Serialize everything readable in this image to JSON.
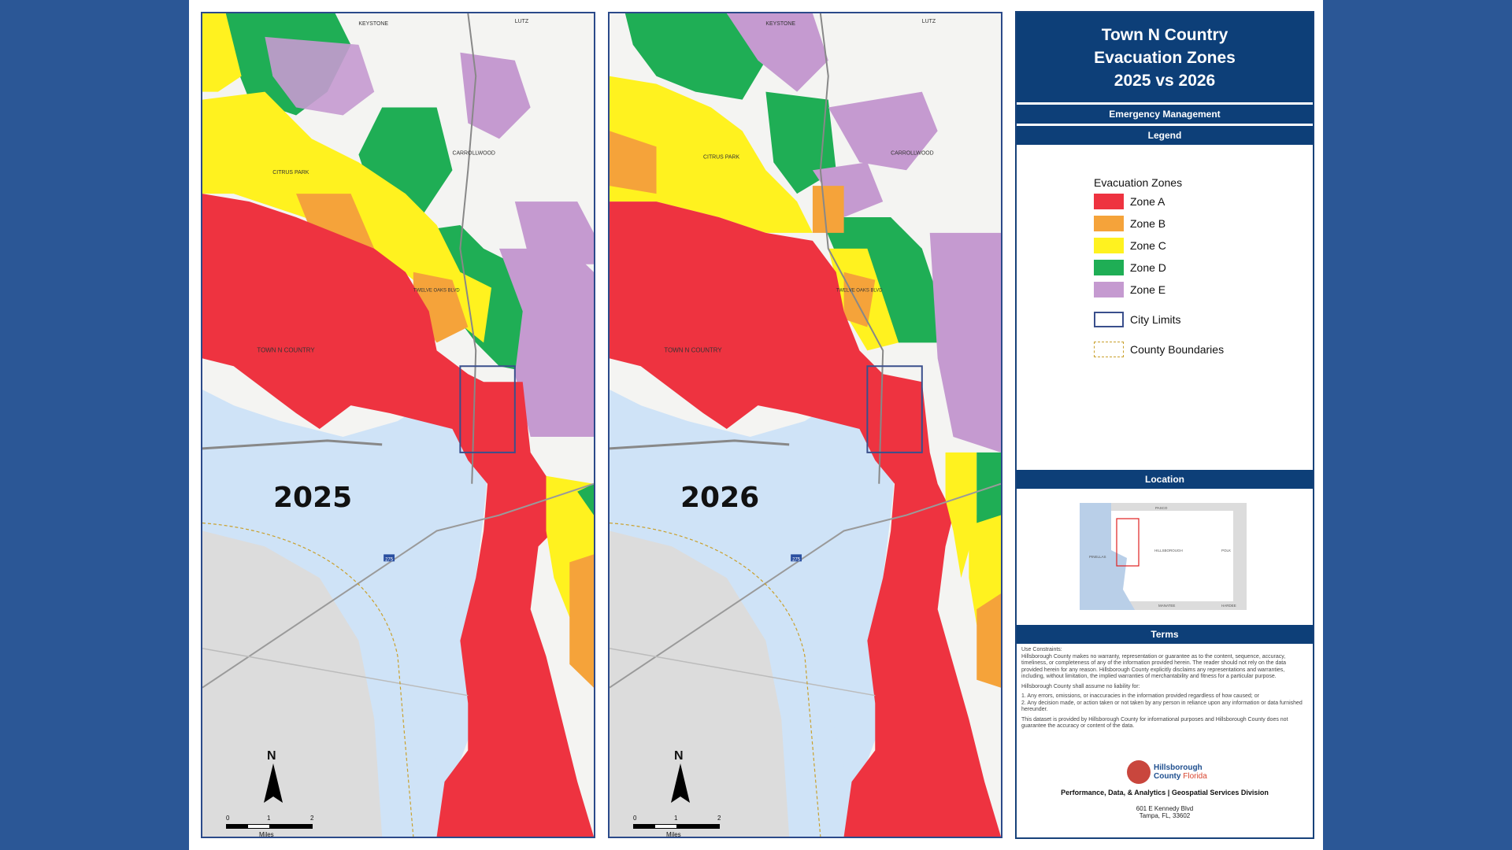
{
  "maps": [
    {
      "year": "2025"
    },
    {
      "year": "2026"
    }
  ],
  "map_labels": {
    "keystone": "KEYSTONE",
    "lutz": "LUTZ",
    "citrus_park": "CITRUS PARK",
    "carrollwood": "CARROLLWOOD",
    "town_n_country": "TOWN N COUNTRY",
    "twelve_oaks": "TWELVE OAKS BLVD",
    "interstate": "275"
  },
  "north_label": "N",
  "scale": {
    "ticks": [
      "0",
      "1",
      "2"
    ],
    "unit": "Miles"
  },
  "panel": {
    "title_lines": [
      "Town N Country",
      "Evacuation Zones",
      "2025 vs 2026"
    ],
    "subtitle": "Emergency Management",
    "legend_header": "Legend",
    "legend_title": "Evacuation Zones",
    "legend_items": [
      {
        "label": "Zone A",
        "color": "#ee3340"
      },
      {
        "label": "Zone B",
        "color": "#f5a33a"
      },
      {
        "label": "Zone C",
        "color": "#fff21f"
      },
      {
        "label": "Zone D",
        "color": "#1fae55"
      },
      {
        "label": "Zone E",
        "color": "#c59ad0"
      }
    ],
    "city_limits_label": "City Limits",
    "county_boundaries_label": "County Boundaries",
    "location_header": "Location",
    "location_labels": {
      "pasco": "PASCO",
      "pinellas": "PINELLAS",
      "hillsborough": "HILLSBOROUGH",
      "polk": "POLK",
      "manatee": "MANATEE",
      "hardee": "HARDEE"
    },
    "terms_header": "Terms",
    "terms_paragraphs": [
      "Use Constraints:",
      "Hillsborough County makes no warranty, representation or guarantee as to the content, sequence, accuracy, timeliness, or completeness of any of the information provided herein. The reader should not rely on the data provided herein for any reason. Hillsborough County explicitly disclaims any representations and warranties, including, without limitation, the implied warranties of merchantability and fitness for a particular purpose.",
      "Hillsborough County shall assume no liability for:",
      "1. Any errors, omissions, or inaccuracies in the information provided regardless of how caused; or",
      "2. Any decision made, or action taken or not taken by any person in reliance upon any information or data furnished hereunder.",
      "This dataset is provided by Hillsborough County for informational purposes and Hillsborough County does not guarantee the accuracy or content of the data."
    ],
    "logo_name_1": "Hillsborough",
    "logo_name_2": "County",
    "logo_state": "Florida",
    "department": "Performance, Data, & Analytics | Geospatial Services Division",
    "address_1": "601 E Kennedy Blvd",
    "address_2": "Tampa, FL, 33602"
  }
}
